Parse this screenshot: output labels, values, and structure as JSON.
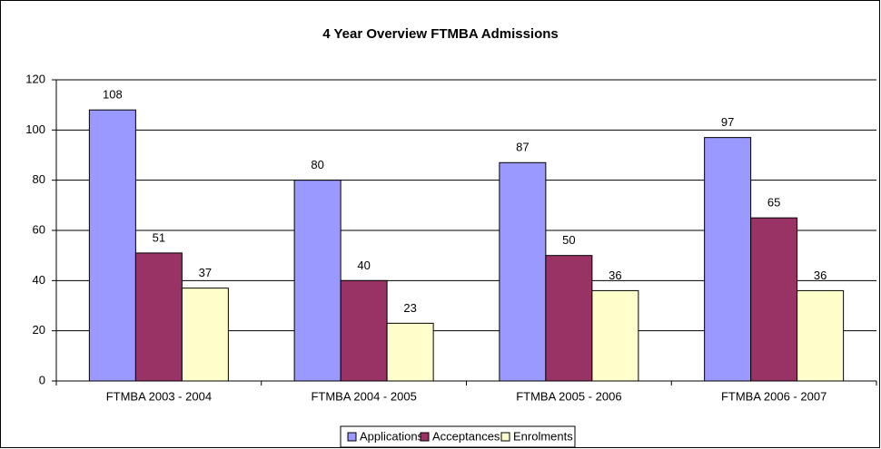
{
  "chart_data": {
    "type": "bar",
    "title": "4 Year Overview FTMBA Admissions",
    "categories": [
      "FTMBA 2003 - 2004",
      "FTMBA 2004 - 2005",
      "FTMBA 2005 - 2006",
      "FTMBA 2006 - 2007"
    ],
    "series": [
      {
        "name": "Applications",
        "color": "#9999ff",
        "values": [
          108,
          80,
          87,
          97
        ]
      },
      {
        "name": "Acceptances",
        "color": "#993366",
        "values": [
          51,
          40,
          50,
          65
        ]
      },
      {
        "name": "Enrolments",
        "color": "#ffffcc",
        "values": [
          37,
          23,
          36,
          36
        ]
      }
    ],
    "ylim": [
      0,
      120
    ],
    "yticks": [
      0,
      20,
      40,
      60,
      80,
      100,
      120
    ],
    "grid": true,
    "legend": "bottom"
  }
}
